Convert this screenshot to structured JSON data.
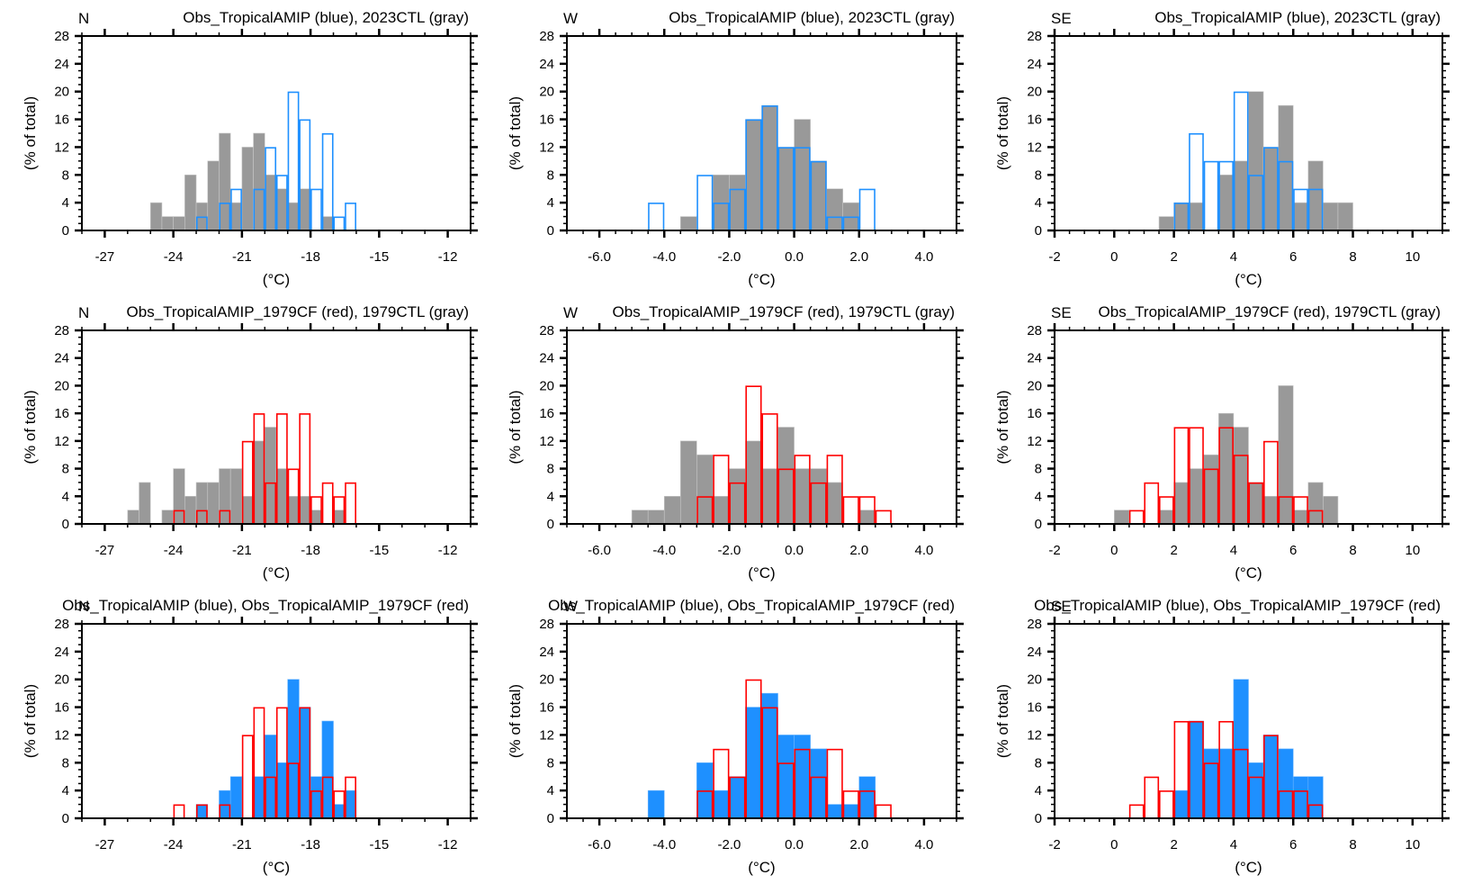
{
  "figure": {
    "colors": {
      "gray_fill": "#999999",
      "blue": "#1e90ff",
      "red": "#ff0000",
      "axis": "#000000"
    }
  },
  "chart_data": [
    {
      "type": "bar",
      "panel": "row1-col1",
      "region": "N",
      "title": "Obs_TropicalAMIP (blue), 2023CTL (gray)",
      "xlabel": "(°C)",
      "ylabel": "(% of total)",
      "xlim": [
        -28,
        -11
      ],
      "ylim": [
        0,
        28
      ],
      "xticks": [
        -27,
        -24,
        -21,
        -18,
        -15,
        -12
      ],
      "xtick_labels": [
        "-27",
        "-24",
        "-21",
        "-18",
        "-15",
        "-12"
      ],
      "yticks": [
        0,
        4,
        8,
        12,
        16,
        20,
        24,
        28
      ],
      "bin_width": 0.5,
      "series": [
        {
          "name": "2023CTL",
          "color": "gray",
          "style": "filled",
          "bin_start": -25.0,
          "values": [
            4,
            2,
            2,
            8,
            4,
            10,
            14,
            4,
            12,
            14,
            8,
            6,
            4,
            6,
            0,
            2
          ]
        },
        {
          "name": "Obs_TropicalAMIP",
          "color": "blue",
          "style": "outline",
          "bin_start": -23.0,
          "values": [
            2,
            0,
            4,
            6,
            0,
            6,
            12,
            8,
            20,
            16,
            6,
            14,
            2,
            4
          ]
        }
      ]
    },
    {
      "type": "bar",
      "panel": "row1-col2",
      "region": "W",
      "title": "Obs_TropicalAMIP (blue), 2023CTL (gray)",
      "xlabel": "(°C)",
      "ylabel": "(% of total)",
      "xlim": [
        -7,
        5
      ],
      "ylim": [
        0,
        28
      ],
      "xticks": [
        -6,
        -4,
        -2,
        0,
        2,
        4
      ],
      "xtick_labels": [
        "-6.0",
        "-4.0",
        "-2.0",
        "0.0",
        "2.0",
        "4.0"
      ],
      "yticks": [
        0,
        4,
        8,
        12,
        16,
        20,
        24,
        28
      ],
      "bin_width": 0.5,
      "series": [
        {
          "name": "2023CTL",
          "color": "gray",
          "style": "filled",
          "bin_start": -3.5,
          "values": [
            2,
            0,
            8,
            8,
            16,
            18,
            12,
            16,
            10,
            6,
            4
          ]
        },
        {
          "name": "Obs_TropicalAMIP",
          "color": "blue",
          "style": "outline",
          "bin_start": -4.5,
          "values": [
            4,
            0,
            0,
            8,
            4,
            6,
            16,
            18,
            12,
            12,
            10,
            2,
            2,
            6
          ]
        }
      ]
    },
    {
      "type": "bar",
      "panel": "row1-col3",
      "region": "SE",
      "title": "Obs_TropicalAMIP (blue), 2023CTL (gray)",
      "xlabel": "(°C)",
      "ylabel": "(% of total)",
      "xlim": [
        -2,
        11
      ],
      "ylim": [
        0,
        28
      ],
      "xticks": [
        -2,
        0,
        2,
        4,
        6,
        8,
        10
      ],
      "xtick_labels": [
        "-2",
        "0",
        "2",
        "4",
        "6",
        "8",
        "10"
      ],
      "yticks": [
        0,
        4,
        8,
        12,
        16,
        20,
        24,
        28
      ],
      "bin_width": 0.5,
      "series": [
        {
          "name": "2023CTL",
          "color": "gray",
          "style": "filled",
          "bin_start": 1.5,
          "values": [
            2,
            4,
            4,
            0,
            8,
            10,
            20,
            12,
            18,
            4,
            10,
            4,
            4
          ]
        },
        {
          "name": "Obs_TropicalAMIP",
          "color": "blue",
          "style": "outline",
          "bin_start": 2.0,
          "values": [
            4,
            14,
            10,
            10,
            20,
            8,
            12,
            10,
            6,
            6
          ]
        }
      ]
    },
    {
      "type": "bar",
      "panel": "row2-col1",
      "region": "N",
      "title": "Obs_TropicalAMIP_1979CF (red), 1979CTL (gray)",
      "xlabel": "(°C)",
      "ylabel": "(% of total)",
      "xlim": [
        -28,
        -11
      ],
      "ylim": [
        0,
        28
      ],
      "xticks": [
        -27,
        -24,
        -21,
        -18,
        -15,
        -12
      ],
      "xtick_labels": [
        "-27",
        "-24",
        "-21",
        "-18",
        "-15",
        "-12"
      ],
      "yticks": [
        0,
        4,
        8,
        12,
        16,
        20,
        24,
        28
      ],
      "bin_width": 0.5,
      "series": [
        {
          "name": "1979CTL",
          "color": "gray",
          "style": "filled",
          "bin_start": -26.0,
          "values": [
            2,
            6,
            0,
            2,
            8,
            4,
            6,
            6,
            8,
            8,
            4,
            12,
            14,
            8,
            4,
            4,
            2,
            0,
            2
          ]
        },
        {
          "name": "Obs_TropicalAMIP_1979CF",
          "color": "red",
          "style": "outline",
          "bin_start": -24.0,
          "values": [
            2,
            0,
            2,
            0,
            2,
            0,
            12,
            16,
            6,
            16,
            8,
            16,
            4,
            6,
            4,
            6
          ]
        }
      ]
    },
    {
      "type": "bar",
      "panel": "row2-col2",
      "region": "W",
      "title": "Obs_TropicalAMIP_1979CF (red), 1979CTL (gray)",
      "xlabel": "(°C)",
      "ylabel": "(% of total)",
      "xlim": [
        -7,
        5
      ],
      "ylim": [
        0,
        28
      ],
      "xticks": [
        -6,
        -4,
        -2,
        0,
        2,
        4
      ],
      "xtick_labels": [
        "-6.0",
        "-4.0",
        "-2.0",
        "0.0",
        "2.0",
        "4.0"
      ],
      "yticks": [
        0,
        4,
        8,
        12,
        16,
        20,
        24,
        28
      ],
      "bin_width": 0.5,
      "series": [
        {
          "name": "1979CTL",
          "color": "gray",
          "style": "filled",
          "bin_start": -5.0,
          "values": [
            2,
            2,
            4,
            12,
            10,
            4,
            8,
            12,
            8,
            14,
            8,
            8,
            6,
            0,
            2
          ]
        },
        {
          "name": "Obs_TropicalAMIP_1979CF",
          "color": "red",
          "style": "outline",
          "bin_start": -3.0,
          "values": [
            4,
            10,
            6,
            20,
            16,
            8,
            10,
            6,
            10,
            4,
            4,
            2
          ]
        }
      ]
    },
    {
      "type": "bar",
      "panel": "row2-col3",
      "region": "SE",
      "title": "Obs_TropicalAMIP_1979CF (red), 1979CTL (gray)",
      "xlabel": "(°C)",
      "ylabel": "(% of total)",
      "xlim": [
        -2,
        11
      ],
      "ylim": [
        0,
        28
      ],
      "xticks": [
        -2,
        0,
        2,
        4,
        6,
        8,
        10
      ],
      "xtick_labels": [
        "-2",
        "0",
        "2",
        "4",
        "6",
        "8",
        "10"
      ],
      "yticks": [
        0,
        4,
        8,
        12,
        16,
        20,
        24,
        28
      ],
      "bin_width": 0.5,
      "series": [
        {
          "name": "1979CTL",
          "color": "gray",
          "style": "filled",
          "bin_start": 0.0,
          "values": [
            2,
            0,
            0,
            2,
            6,
            8,
            10,
            16,
            14,
            6,
            4,
            20,
            2,
            6,
            4
          ]
        },
        {
          "name": "Obs_TropicalAMIP_1979CF",
          "color": "red",
          "style": "outline",
          "bin_start": 0.5,
          "values": [
            2,
            6,
            4,
            14,
            14,
            8,
            14,
            10,
            6,
            12,
            4,
            4,
            2
          ]
        }
      ]
    },
    {
      "type": "bar",
      "panel": "row3-col1",
      "region": "N",
      "title": "Obs_TropicalAMIP (blue), Obs_TropicalAMIP_1979CF (red)",
      "xlabel": "(°C)",
      "ylabel": "(% of total)",
      "xlim": [
        -28,
        -11
      ],
      "ylim": [
        0,
        28
      ],
      "xticks": [
        -27,
        -24,
        -21,
        -18,
        -15,
        -12
      ],
      "xtick_labels": [
        "-27",
        "-24",
        "-21",
        "-18",
        "-15",
        "-12"
      ],
      "yticks": [
        0,
        4,
        8,
        12,
        16,
        20,
        24,
        28
      ],
      "bin_width": 0.5,
      "series": [
        {
          "name": "Obs_TropicalAMIP",
          "color": "blue",
          "style": "filled",
          "bin_start": -23.0,
          "values": [
            2,
            0,
            4,
            6,
            0,
            6,
            12,
            8,
            20,
            16,
            6,
            14,
            2,
            4
          ]
        },
        {
          "name": "Obs_TropicalAMIP_1979CF",
          "color": "red",
          "style": "outline",
          "bin_start": -24.0,
          "values": [
            2,
            0,
            2,
            0,
            2,
            0,
            12,
            16,
            6,
            16,
            8,
            16,
            4,
            6,
            4,
            6
          ]
        }
      ]
    },
    {
      "type": "bar",
      "panel": "row3-col2",
      "region": "W",
      "title": "Obs_TropicalAMIP (blue), Obs_TropicalAMIP_1979CF (red)",
      "xlabel": "(°C)",
      "ylabel": "(% of total)",
      "xlim": [
        -7,
        5
      ],
      "ylim": [
        0,
        28
      ],
      "xticks": [
        -6,
        -4,
        -2,
        0,
        2,
        4
      ],
      "xtick_labels": [
        "-6.0",
        "-4.0",
        "-2.0",
        "0.0",
        "2.0",
        "4.0"
      ],
      "yticks": [
        0,
        4,
        8,
        12,
        16,
        20,
        24,
        28
      ],
      "bin_width": 0.5,
      "series": [
        {
          "name": "Obs_TropicalAMIP",
          "color": "blue",
          "style": "filled",
          "bin_start": -4.5,
          "values": [
            4,
            0,
            0,
            8,
            4,
            6,
            16,
            18,
            12,
            12,
            10,
            2,
            2,
            6
          ]
        },
        {
          "name": "Obs_TropicalAMIP_1979CF",
          "color": "red",
          "style": "outline",
          "bin_start": -3.0,
          "values": [
            4,
            10,
            6,
            20,
            16,
            8,
            10,
            6,
            10,
            4,
            4,
            2
          ]
        }
      ]
    },
    {
      "type": "bar",
      "panel": "row3-col3",
      "region": "SE",
      "title": "Obs_TropicalAMIP (blue), Obs_TropicalAMIP_1979CF (red)",
      "xlabel": "(°C)",
      "ylabel": "(% of total)",
      "xlim": [
        -2,
        11
      ],
      "ylim": [
        0,
        28
      ],
      "xticks": [
        -2,
        0,
        2,
        4,
        6,
        8,
        10
      ],
      "xtick_labels": [
        "-2",
        "0",
        "2",
        "4",
        "6",
        "8",
        "10"
      ],
      "yticks": [
        0,
        4,
        8,
        12,
        16,
        20,
        24,
        28
      ],
      "bin_width": 0.5,
      "series": [
        {
          "name": "Obs_TropicalAMIP",
          "color": "blue",
          "style": "filled",
          "bin_start": 2.0,
          "values": [
            4,
            14,
            10,
            10,
            20,
            8,
            12,
            10,
            6,
            6
          ]
        },
        {
          "name": "Obs_TropicalAMIP_1979CF",
          "color": "red",
          "style": "outline",
          "bin_start": 0.5,
          "values": [
            2,
            6,
            4,
            14,
            14,
            8,
            14,
            10,
            6,
            12,
            4,
            4,
            2
          ]
        }
      ]
    }
  ]
}
